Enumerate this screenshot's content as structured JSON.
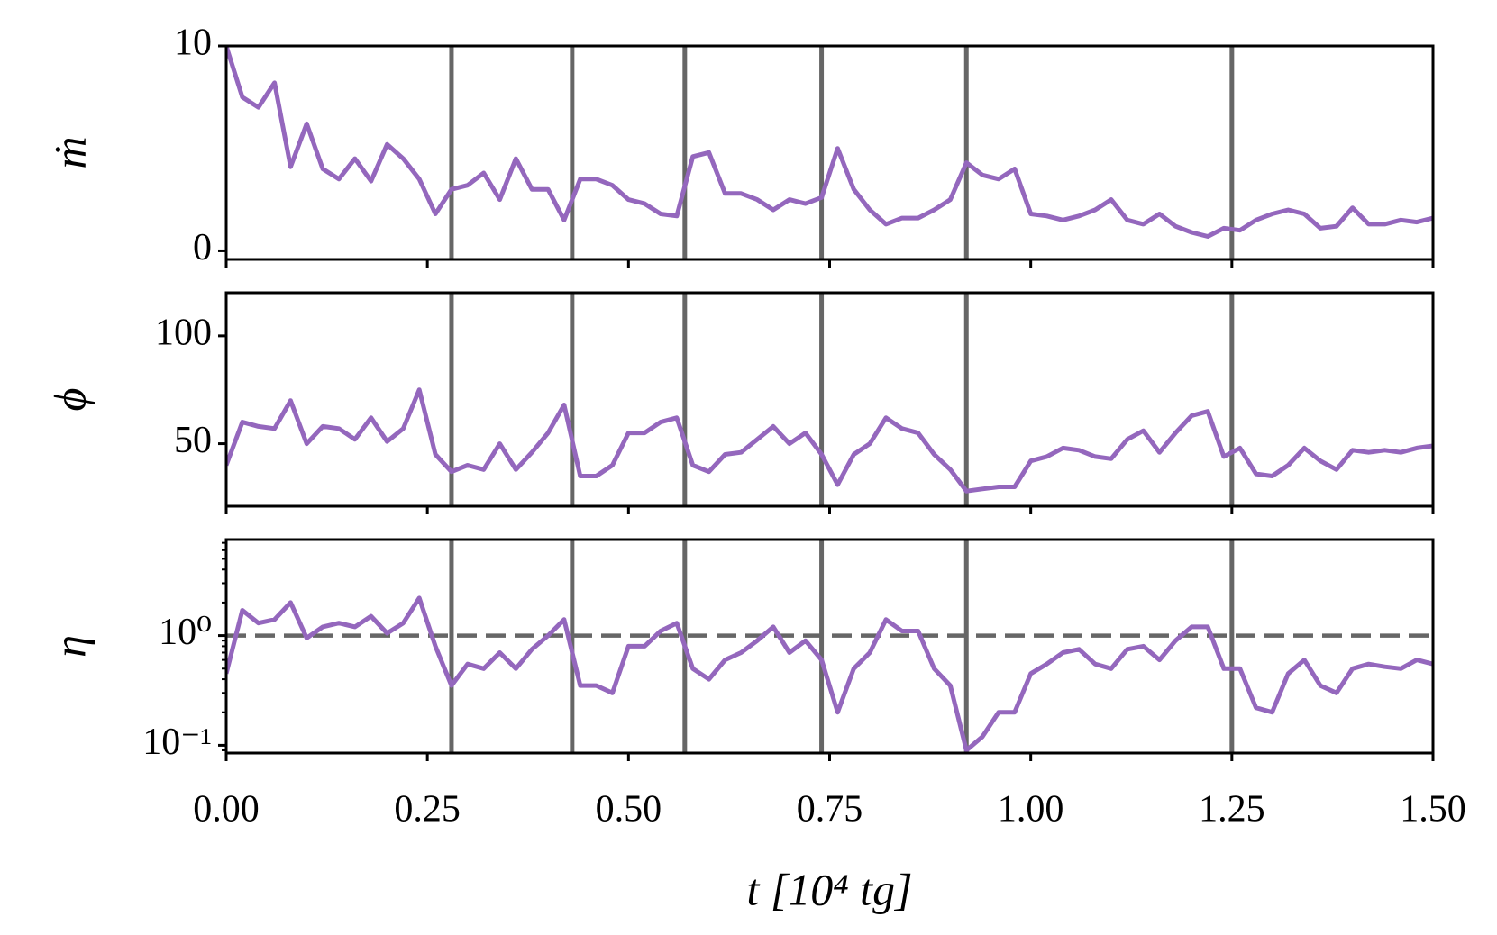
{
  "chart_data": [
    {
      "type": "line",
      "ylabel": "ṁ",
      "color": "#9467bd",
      "vline_color": "#666666",
      "x": [
        0,
        0.02,
        0.04,
        0.06,
        0.08,
        0.1,
        0.12,
        0.14,
        0.16,
        0.18,
        0.2,
        0.22,
        0.24,
        0.26,
        0.28,
        0.3,
        0.32,
        0.34,
        0.36,
        0.38,
        0.4,
        0.42,
        0.44,
        0.46,
        0.48,
        0.5,
        0.52,
        0.54,
        0.56,
        0.58,
        0.6,
        0.62,
        0.64,
        0.66,
        0.68,
        0.7,
        0.72,
        0.74,
        0.76,
        0.78,
        0.8,
        0.82,
        0.84,
        0.86,
        0.88,
        0.9,
        0.92,
        0.94,
        0.96,
        0.98,
        1.0,
        1.02,
        1.04,
        1.06,
        1.08,
        1.1,
        1.12,
        1.14,
        1.16,
        1.18,
        1.2,
        1.22,
        1.24,
        1.26,
        1.28,
        1.3,
        1.32,
        1.34,
        1.36,
        1.38,
        1.4,
        1.42,
        1.44,
        1.46,
        1.48,
        1.5
      ],
      "values": [
        10,
        7.5,
        7.0,
        8.2,
        4.1,
        6.2,
        4.0,
        3.5,
        4.5,
        3.4,
        5.2,
        4.5,
        3.5,
        1.8,
        3.0,
        3.2,
        3.8,
        2.5,
        4.5,
        3.0,
        3.0,
        1.5,
        3.5,
        3.5,
        3.2,
        2.5,
        2.3,
        1.8,
        1.7,
        4.6,
        4.8,
        2.8,
        2.8,
        2.5,
        2.0,
        2.5,
        2.3,
        2.6,
        5.0,
        3.0,
        2.0,
        1.3,
        1.6,
        1.6,
        2.0,
        2.5,
        4.3,
        3.7,
        3.5,
        4.0,
        1.8,
        1.7,
        1.5,
        1.7,
        2.0,
        2.5,
        1.5,
        1.3,
        1.8,
        1.2,
        0.9,
        0.7,
        1.1,
        1.0,
        1.5,
        1.8,
        2.0,
        1.8,
        1.1,
        1.2,
        2.1,
        1.3,
        1.3,
        1.5,
        1.4,
        1.6
      ],
      "xlim": [
        0,
        1.5
      ],
      "ylim": [
        -0.42,
        10
      ],
      "yticks": [
        0,
        10
      ],
      "vlines": [
        0.28,
        0.43,
        0.57,
        0.74,
        0.92,
        1.25
      ]
    },
    {
      "type": "line",
      "ylabel": "ϕ",
      "color": "#9467bd",
      "vline_color": "#666666",
      "x": [
        0,
        0.02,
        0.04,
        0.06,
        0.08,
        0.1,
        0.12,
        0.14,
        0.16,
        0.18,
        0.2,
        0.22,
        0.24,
        0.26,
        0.28,
        0.3,
        0.32,
        0.34,
        0.36,
        0.38,
        0.4,
        0.42,
        0.44,
        0.46,
        0.48,
        0.5,
        0.52,
        0.54,
        0.56,
        0.58,
        0.6,
        0.62,
        0.64,
        0.66,
        0.68,
        0.7,
        0.72,
        0.74,
        0.76,
        0.78,
        0.8,
        0.82,
        0.84,
        0.86,
        0.88,
        0.9,
        0.92,
        0.94,
        0.96,
        0.98,
        1.0,
        1.02,
        1.04,
        1.06,
        1.08,
        1.1,
        1.12,
        1.14,
        1.16,
        1.18,
        1.2,
        1.22,
        1.24,
        1.26,
        1.28,
        1.3,
        1.32,
        1.34,
        1.36,
        1.38,
        1.4,
        1.42,
        1.44,
        1.46,
        1.48,
        1.5
      ],
      "values": [
        40,
        60,
        58,
        57,
        70,
        50,
        58,
        57,
        52,
        62,
        51,
        57,
        75,
        45,
        37,
        40,
        38,
        50,
        38,
        46,
        55,
        68,
        35,
        35,
        40,
        55,
        55,
        60,
        62,
        40,
        37,
        45,
        46,
        52,
        58,
        50,
        55,
        45,
        31,
        45,
        50,
        62,
        57,
        55,
        45,
        38,
        28,
        29,
        30,
        30,
        42,
        44,
        48,
        47,
        44,
        43,
        52,
        56,
        46,
        55,
        63,
        65,
        44,
        48,
        36,
        35,
        40,
        48,
        42,
        38,
        47,
        46,
        47,
        46,
        48,
        49
      ],
      "xlim": [
        0,
        1.5
      ],
      "ylim": [
        21,
        120
      ],
      "yticks": [
        50,
        100
      ],
      "vlines": [
        0.28,
        0.43,
        0.57,
        0.74,
        0.92,
        1.25
      ]
    },
    {
      "type": "line",
      "ylabel": "η",
      "xlabel": "t [10⁴ tg]",
      "color": "#9467bd",
      "vline_color": "#666666",
      "ylog": true,
      "x": [
        0,
        0.02,
        0.04,
        0.06,
        0.08,
        0.1,
        0.12,
        0.14,
        0.16,
        0.18,
        0.2,
        0.22,
        0.24,
        0.26,
        0.28,
        0.3,
        0.32,
        0.34,
        0.36,
        0.38,
        0.4,
        0.42,
        0.44,
        0.46,
        0.48,
        0.5,
        0.52,
        0.54,
        0.56,
        0.58,
        0.6,
        0.62,
        0.64,
        0.66,
        0.68,
        0.7,
        0.72,
        0.74,
        0.76,
        0.78,
        0.8,
        0.82,
        0.84,
        0.86,
        0.88,
        0.9,
        0.92,
        0.94,
        0.96,
        0.98,
        1.0,
        1.02,
        1.04,
        1.06,
        1.08,
        1.1,
        1.12,
        1.14,
        1.16,
        1.18,
        1.2,
        1.22,
        1.24,
        1.26,
        1.28,
        1.3,
        1.32,
        1.34,
        1.36,
        1.38,
        1.4,
        1.42,
        1.44,
        1.46,
        1.48,
        1.5
      ],
      "values": [
        0.45,
        1.7,
        1.3,
        1.4,
        2.0,
        0.95,
        1.2,
        1.3,
        1.2,
        1.5,
        1.05,
        1.3,
        2.2,
        0.8,
        0.35,
        0.55,
        0.5,
        0.7,
        0.5,
        0.75,
        1.0,
        1.4,
        0.35,
        0.35,
        0.3,
        0.8,
        0.8,
        1.1,
        1.3,
        0.5,
        0.4,
        0.6,
        0.7,
        0.9,
        1.2,
        0.7,
        0.9,
        0.6,
        0.2,
        0.5,
        0.7,
        1.4,
        1.1,
        1.1,
        0.5,
        0.35,
        0.09,
        0.12,
        0.2,
        0.2,
        0.45,
        0.55,
        0.7,
        0.75,
        0.55,
        0.5,
        0.75,
        0.8,
        0.6,
        0.9,
        1.2,
        1.2,
        0.5,
        0.5,
        0.22,
        0.2,
        0.45,
        0.6,
        0.35,
        0.3,
        0.5,
        0.55,
        0.52,
        0.5,
        0.6,
        0.55
      ],
      "xlim": [
        0,
        1.5
      ],
      "ylim": [
        0.085,
        7.5
      ],
      "yticks": [
        {
          "value": 0.1,
          "label": "10⁻¹"
        },
        {
          "value": 1,
          "label": "10⁰"
        }
      ],
      "yticks_minor": [
        0.09,
        0.2,
        0.3,
        0.4,
        0.5,
        0.6,
        0.7,
        0.8,
        0.9,
        2,
        3,
        4,
        5,
        6,
        7
      ],
      "hline": 1,
      "xticks": [
        {
          "value": 0,
          "label": "0.00"
        },
        {
          "value": 0.25,
          "label": "0.25"
        },
        {
          "value": 0.5,
          "label": "0.50"
        },
        {
          "value": 0.75,
          "label": "0.75"
        },
        {
          "value": 1,
          "label": "1.00"
        },
        {
          "value": 1.25,
          "label": "1.25"
        },
        {
          "value": 1.5,
          "label": "1.50"
        }
      ],
      "vlines": [
        0.28,
        0.43,
        0.57,
        0.74,
        0.92,
        1.25
      ]
    }
  ]
}
